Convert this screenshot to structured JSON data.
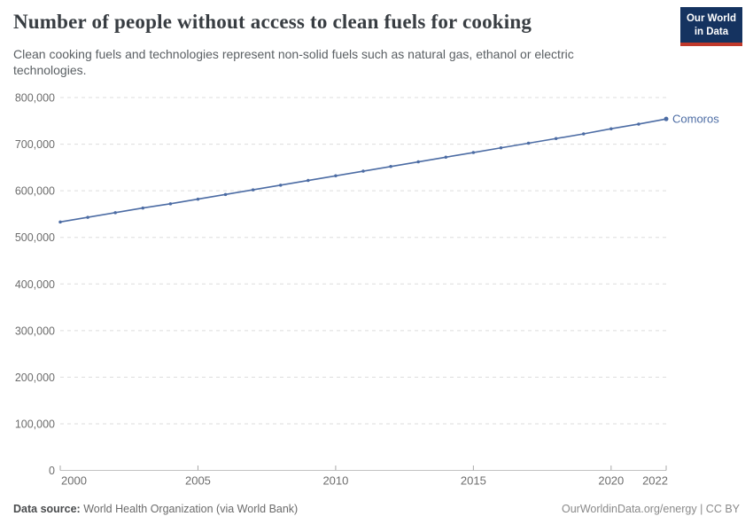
{
  "logo": {
    "line1": "Our World",
    "line2": "in Data"
  },
  "chart_data": {
    "type": "line",
    "title": "Number of people without access to clean fuels for cooking",
    "subtitle": "Clean cooking fuels and technologies represent non-solid fuels such as natural gas, ethanol or electric technologies.",
    "xlabel": "",
    "ylabel": "",
    "xlim": [
      2000,
      2022
    ],
    "ylim": [
      0,
      800000
    ],
    "x_ticks": [
      2000,
      2005,
      2010,
      2015,
      2020,
      2022
    ],
    "y_ticks": [
      0,
      100000,
      200000,
      300000,
      400000,
      500000,
      600000,
      700000,
      800000
    ],
    "grid": true,
    "legend": "end-of-line-label",
    "series": [
      {
        "name": "Comoros",
        "color": "#4C6CA4",
        "x": [
          2000,
          2001,
          2002,
          2003,
          2004,
          2005,
          2006,
          2007,
          2008,
          2009,
          2010,
          2011,
          2012,
          2013,
          2014,
          2015,
          2016,
          2017,
          2018,
          2019,
          2020,
          2021,
          2022
        ],
        "values": [
          533000,
          543000,
          553000,
          563000,
          572000,
          582000,
          592000,
          602000,
          612000,
          622000,
          632000,
          642000,
          652000,
          662000,
          672000,
          682000,
          692000,
          702000,
          712000,
          722000,
          733000,
          743000,
          754000
        ]
      }
    ]
  },
  "footer": {
    "source_label": "Data source:",
    "source_value": "World Health Organization (via World Bank)",
    "credit": "OurWorldinData.org/energy | CC BY"
  },
  "colors": {
    "accent": "#4C6CA4",
    "grid": "#dddddd",
    "axis_line": "#c2c2c2",
    "tick": "#a8a8a8",
    "axis_text": "#6d6d6d",
    "logo_bg": "#153360",
    "logo_stripe": "#c0392b"
  }
}
